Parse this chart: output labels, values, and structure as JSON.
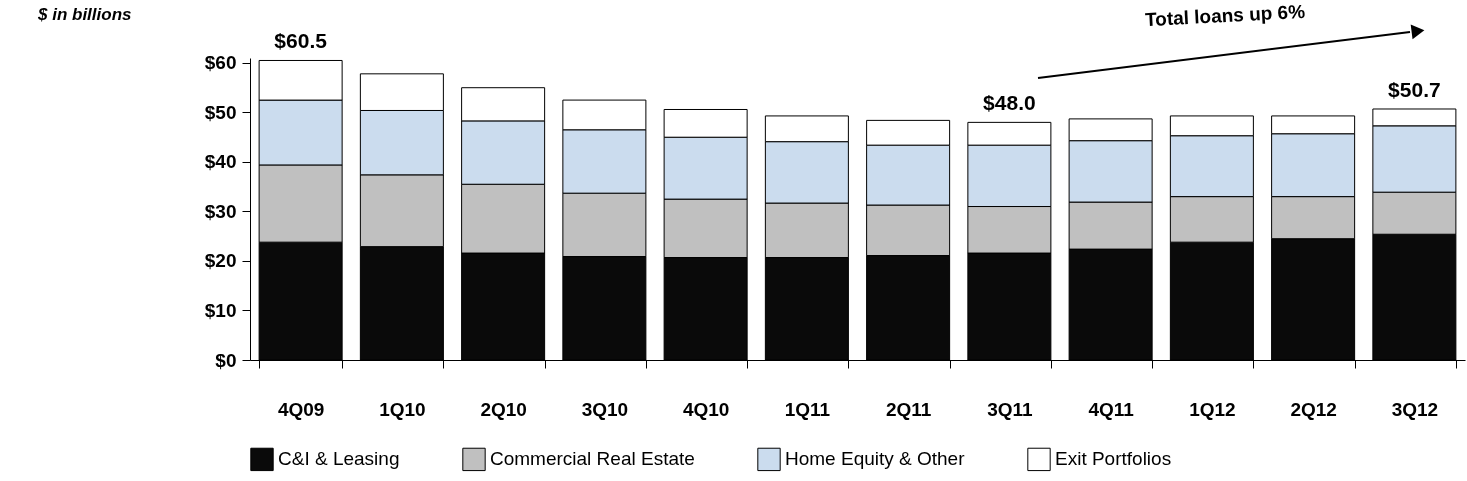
{
  "chart_data": {
    "type": "bar",
    "stacked": true,
    "categories": [
      "4Q09",
      "1Q10",
      "2Q10",
      "3Q10",
      "4Q10",
      "1Q11",
      "2Q11",
      "3Q11",
      "4Q11",
      "1Q12",
      "2Q12",
      "3Q12"
    ],
    "series": [
      {
        "name": "C&I & Leasing",
        "color": "#0a0a0a",
        "values": [
          23.8,
          22.9,
          21.6,
          20.9,
          20.7,
          20.7,
          21.1,
          21.6,
          22.4,
          23.8,
          24.5,
          25.4
        ]
      },
      {
        "name": "Commercial Real Estate",
        "color": "#c0c0c0",
        "values": [
          15.6,
          14.5,
          13.9,
          12.8,
          11.8,
          11.0,
          10.2,
          9.4,
          9.5,
          9.2,
          8.5,
          8.5
        ]
      },
      {
        "name": "Home Equity & Other",
        "color": "#cbdcee",
        "values": [
          13.1,
          13.0,
          12.8,
          12.8,
          12.5,
          12.4,
          12.1,
          12.4,
          12.4,
          12.3,
          12.7,
          13.4
        ]
      },
      {
        "name": "Exit Portfolios",
        "color": "#ffffff",
        "values": [
          8.0,
          7.4,
          6.7,
          6.0,
          5.6,
          5.2,
          5.0,
          4.6,
          4.4,
          4.0,
          3.6,
          3.4
        ]
      }
    ],
    "totals": [
      "$60.5",
      null,
      null,
      null,
      null,
      null,
      null,
      "$48.0",
      null,
      null,
      null,
      "$50.7"
    ],
    "ylim": [
      0,
      61
    ],
    "yticks": [
      {
        "value": 0,
        "label": "$0"
      },
      {
        "value": 10,
        "label": "$10"
      },
      {
        "value": 20,
        "label": "$20"
      },
      {
        "value": 30,
        "label": "$30"
      },
      {
        "value": 40,
        "label": "$40"
      },
      {
        "value": 50,
        "label": "$50"
      },
      {
        "value": 60,
        "label": "$60"
      }
    ],
    "grid": false,
    "legend": "bottom",
    "annotations": [
      "$ in billions",
      "Total loans up 6%"
    ]
  }
}
